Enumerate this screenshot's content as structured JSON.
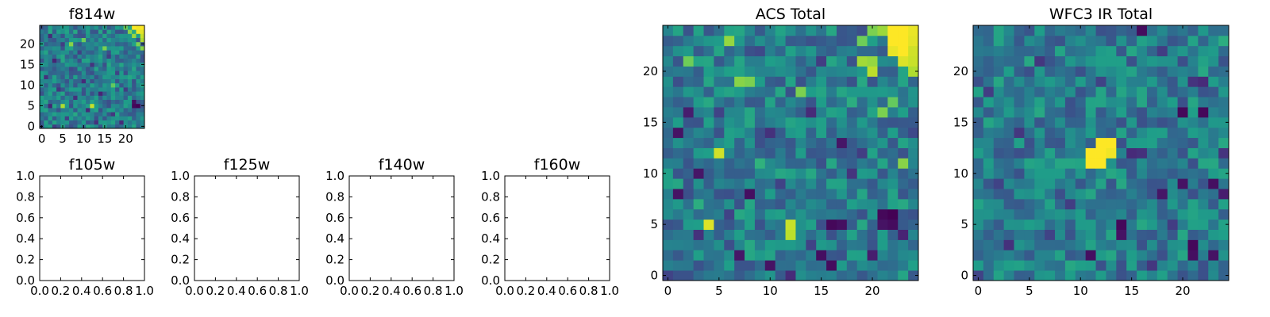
{
  "chart_data": [
    {
      "type": "heatmap",
      "title": "f814w",
      "grid_size": 25,
      "xlim": [
        -0.5,
        24.5
      ],
      "ylim": [
        -0.5,
        24.5
      ],
      "xticks": [
        0,
        5,
        10,
        15,
        20
      ],
      "yticks": [
        0,
        5,
        10,
        15,
        20
      ],
      "xtick_labels": [
        "0",
        "5",
        "10",
        "15",
        "20"
      ],
      "ytick_labels": [
        "0",
        "5",
        "10",
        "15",
        "20"
      ],
      "colormap": "viridis",
      "value_range": [
        0,
        1
      ],
      "background": "#3bb58a",
      "cells": [
        {
          "x": 22,
          "y": 24,
          "v": 1.0
        },
        {
          "x": 23,
          "y": 24,
          "v": 0.98
        },
        {
          "x": 24,
          "y": 24,
          "v": 1.0
        },
        {
          "x": 23,
          "y": 23,
          "v": 0.97
        },
        {
          "x": 24,
          "y": 23,
          "v": 0.96
        },
        {
          "x": 24,
          "y": 22,
          "v": 0.92
        },
        {
          "x": 21,
          "y": 23,
          "v": 0.82
        },
        {
          "x": 20,
          "y": 24,
          "v": 0.78
        },
        {
          "x": 22,
          "y": 22,
          "v": 0.85
        },
        {
          "x": 24,
          "y": 21,
          "v": 0.88
        },
        {
          "x": 23,
          "y": 20,
          "v": 0.8
        },
        {
          "x": 24,
          "y": 19,
          "v": 0.82
        },
        {
          "x": 2,
          "y": 22,
          "v": 0.12
        },
        {
          "x": 5,
          "y": 20,
          "v": 0.18
        },
        {
          "x": 9,
          "y": 18,
          "v": 0.2
        },
        {
          "x": 3,
          "y": 16,
          "v": 0.1
        },
        {
          "x": 12,
          "y": 15,
          "v": 0.15
        },
        {
          "x": 7,
          "y": 14,
          "v": 0.22
        },
        {
          "x": 16,
          "y": 17,
          "v": 0.18
        },
        {
          "x": 1,
          "y": 12,
          "v": 0.14
        },
        {
          "x": 10,
          "y": 11,
          "v": 0.12
        },
        {
          "x": 18,
          "y": 13,
          "v": 0.2
        },
        {
          "x": 4,
          "y": 9,
          "v": 0.16
        },
        {
          "x": 14,
          "y": 8,
          "v": 0.1
        },
        {
          "x": 8,
          "y": 7,
          "v": 0.14
        },
        {
          "x": 20,
          "y": 9,
          "v": 0.18
        },
        {
          "x": 2,
          "y": 5,
          "v": 0.1
        },
        {
          "x": 11,
          "y": 4,
          "v": 0.12
        },
        {
          "x": 17,
          "y": 3,
          "v": 0.16
        },
        {
          "x": 6,
          "y": 2,
          "v": 0.2
        },
        {
          "x": 13,
          "y": 1,
          "v": 0.14
        },
        {
          "x": 22,
          "y": 5,
          "v": 0.02
        },
        {
          "x": 23,
          "y": 5,
          "v": 0.0
        },
        {
          "x": 22,
          "y": 6,
          "v": 0.04
        },
        {
          "x": 3,
          "y": 0,
          "v": 0.18
        },
        {
          "x": 19,
          "y": 1,
          "v": 0.12
        },
        {
          "x": 12,
          "y": 5,
          "v": 0.92
        },
        {
          "x": 5,
          "y": 5,
          "v": 0.88
        },
        {
          "x": 7,
          "y": 20,
          "v": 0.82
        },
        {
          "x": 15,
          "y": 19,
          "v": 0.8
        },
        {
          "x": 10,
          "y": 21,
          "v": 0.78
        },
        {
          "x": 17,
          "y": 10,
          "v": 0.76
        }
      ]
    },
    {
      "type": "empty",
      "title": "f105w",
      "xlim": [
        0,
        1
      ],
      "ylim": [
        0,
        1
      ],
      "xtick_labels": [
        "0.0",
        "0.2",
        "0.4",
        "0.6",
        "0.8",
        "1.0"
      ],
      "ytick_labels": [
        "0.0",
        "0.2",
        "0.4",
        "0.6",
        "0.8",
        "1.0"
      ]
    },
    {
      "type": "empty",
      "title": "f125w",
      "xlim": [
        0,
        1
      ],
      "ylim": [
        0,
        1
      ],
      "xtick_labels": [
        "0.0",
        "0.2",
        "0.4",
        "0.6",
        "0.8",
        "1.0"
      ],
      "ytick_labels": [
        "0.0",
        "0.2",
        "0.4",
        "0.6",
        "0.8",
        "1.0"
      ]
    },
    {
      "type": "empty",
      "title": "f140w",
      "xlim": [
        0,
        1
      ],
      "ylim": [
        0,
        1
      ],
      "xtick_labels": [
        "0.0",
        "0.2",
        "0.4",
        "0.6",
        "0.8",
        "1.0"
      ],
      "ytick_labels": [
        "0.0",
        "0.2",
        "0.4",
        "0.6",
        "0.8",
        "1.0"
      ]
    },
    {
      "type": "empty",
      "title": "f160w",
      "xlim": [
        0,
        1
      ],
      "ylim": [
        0,
        1
      ],
      "xtick_labels": [
        "0.0",
        "0.2",
        "0.4",
        "0.6",
        "0.8",
        "1.0"
      ],
      "ytick_labels": [
        "0.0",
        "0.2",
        "0.4",
        "0.6",
        "0.8",
        "1.0"
      ]
    },
    {
      "type": "heatmap",
      "title": "ACS Total",
      "grid_size": 25,
      "xlim": [
        -0.5,
        24.5
      ],
      "ylim": [
        -0.5,
        24.5
      ],
      "xticks": [
        0,
        5,
        10,
        15,
        20
      ],
      "yticks": [
        0,
        5,
        10,
        15,
        20
      ],
      "xtick_labels": [
        "0",
        "5",
        "10",
        "15",
        "20"
      ],
      "ytick_labels": [
        "0",
        "5",
        "10",
        "15",
        "20"
      ],
      "colormap": "viridis",
      "value_range": [
        0,
        1
      ],
      "background": "#55c568",
      "cells": [
        {
          "x": 22,
          "y": 24,
          "v": 1.0
        },
        {
          "x": 23,
          "y": 24,
          "v": 1.0
        },
        {
          "x": 24,
          "y": 24,
          "v": 0.97
        },
        {
          "x": 22,
          "y": 23,
          "v": 1.0
        },
        {
          "x": 23,
          "y": 23,
          "v": 1.0
        },
        {
          "x": 24,
          "y": 23,
          "v": 0.96
        },
        {
          "x": 22,
          "y": 22,
          "v": 0.97
        },
        {
          "x": 23,
          "y": 22,
          "v": 1.0
        },
        {
          "x": 24,
          "y": 22,
          "v": 0.93
        },
        {
          "x": 23,
          "y": 21,
          "v": 0.95
        },
        {
          "x": 24,
          "y": 21,
          "v": 0.92
        },
        {
          "x": 24,
          "y": 20,
          "v": 0.88
        },
        {
          "x": 20,
          "y": 20,
          "v": 0.9
        },
        {
          "x": 19,
          "y": 21,
          "v": 0.86
        },
        {
          "x": 20,
          "y": 21,
          "v": 0.84
        },
        {
          "x": 21,
          "y": 24,
          "v": 0.85
        },
        {
          "x": 20,
          "y": 24,
          "v": 0.8
        },
        {
          "x": 19,
          "y": 23,
          "v": 0.78
        },
        {
          "x": 7,
          "y": 19,
          "v": 0.82
        },
        {
          "x": 8,
          "y": 19,
          "v": 0.8
        },
        {
          "x": 6,
          "y": 23,
          "v": 0.84
        },
        {
          "x": 2,
          "y": 21,
          "v": 0.78
        },
        {
          "x": 13,
          "y": 18,
          "v": 0.8
        },
        {
          "x": 23,
          "y": 11,
          "v": 0.82
        },
        {
          "x": 5,
          "y": 12,
          "v": 0.93
        },
        {
          "x": 4,
          "y": 5,
          "v": 0.95
        },
        {
          "x": 12,
          "y": 5,
          "v": 0.92
        },
        {
          "x": 12,
          "y": 4,
          "v": 0.9
        },
        {
          "x": 22,
          "y": 17,
          "v": 0.76
        },
        {
          "x": 21,
          "y": 16,
          "v": 0.8
        },
        {
          "x": 2,
          "y": 16,
          "v": 0.08
        },
        {
          "x": 1,
          "y": 14,
          "v": 0.05
        },
        {
          "x": 3,
          "y": 10,
          "v": 0.06
        },
        {
          "x": 1,
          "y": 8,
          "v": 0.05
        },
        {
          "x": 8,
          "y": 8,
          "v": 0.04
        },
        {
          "x": 7,
          "y": 2,
          "v": 0.06
        },
        {
          "x": 10,
          "y": 1,
          "v": 0.05
        },
        {
          "x": 15,
          "y": 2,
          "v": 0.04
        },
        {
          "x": 16,
          "y": 1,
          "v": 0.03
        },
        {
          "x": 16,
          "y": 5,
          "v": 0.02
        },
        {
          "x": 17,
          "y": 5,
          "v": 0.04
        },
        {
          "x": 21,
          "y": 6,
          "v": 0.02
        },
        {
          "x": 22,
          "y": 6,
          "v": 0.0
        },
        {
          "x": 22,
          "y": 5,
          "v": 0.03
        },
        {
          "x": 21,
          "y": 5,
          "v": 0.05
        },
        {
          "x": 17,
          "y": 13,
          "v": 0.06
        },
        {
          "x": 20,
          "y": 2,
          "v": 0.08
        },
        {
          "x": 23,
          "y": 4,
          "v": 0.1
        },
        {
          "x": 14,
          "y": 16,
          "v": 0.12
        },
        {
          "x": 10,
          "y": 14,
          "v": 0.14
        },
        {
          "x": 18,
          "y": 10,
          "v": 0.15
        },
        {
          "x": 3,
          "y": 4,
          "v": 0.14
        },
        {
          "x": 12,
          "y": 0,
          "v": 0.12
        },
        {
          "x": 0,
          "y": 0,
          "v": 0.2
        },
        {
          "x": 5,
          "y": 16,
          "v": 0.2
        },
        {
          "x": 15,
          "y": 21,
          "v": 0.18
        },
        {
          "x": 9,
          "y": 22,
          "v": 0.22
        },
        {
          "x": 11,
          "y": 9,
          "v": 0.2
        },
        {
          "x": 19,
          "y": 12,
          "v": 0.18
        },
        {
          "x": 6,
          "y": 6,
          "v": 0.2
        },
        {
          "x": 24,
          "y": 14,
          "v": 0.22
        },
        {
          "x": 1,
          "y": 19,
          "v": 0.24
        },
        {
          "x": 14,
          "y": 3,
          "v": 0.2
        },
        {
          "x": 18,
          "y": 17,
          "v": 0.62
        },
        {
          "x": 9,
          "y": 11,
          "v": 0.64
        },
        {
          "x": 3,
          "y": 7,
          "v": 0.62
        }
      ]
    },
    {
      "type": "heatmap",
      "title": "WFC3 IR Total",
      "grid_size": 25,
      "xlim": [
        -0.5,
        24.5
      ],
      "ylim": [
        -0.5,
        24.5
      ],
      "xticks": [
        0,
        5,
        10,
        15,
        20
      ],
      "yticks": [
        0,
        5,
        10,
        15,
        20
      ],
      "xtick_labels": [
        "0",
        "5",
        "10",
        "15",
        "20"
      ],
      "ytick_labels": [
        "0",
        "5",
        "10",
        "15",
        "20"
      ],
      "colormap": "viridis",
      "value_range": [
        0,
        1
      ],
      "background": "#2a9d8a",
      "cells": [
        {
          "x": 12,
          "y": 13,
          "v": 1.0
        },
        {
          "x": 13,
          "y": 13,
          "v": 1.0
        },
        {
          "x": 11,
          "y": 12,
          "v": 1.0
        },
        {
          "x": 12,
          "y": 12,
          "v": 1.0
        },
        {
          "x": 13,
          "y": 12,
          "v": 0.98
        },
        {
          "x": 11,
          "y": 11,
          "v": 1.0
        },
        {
          "x": 12,
          "y": 11,
          "v": 1.0
        },
        {
          "x": 16,
          "y": 13,
          "v": 0.55
        },
        {
          "x": 8,
          "y": 10,
          "v": 0.55
        },
        {
          "x": 16,
          "y": 24,
          "v": 0.03
        },
        {
          "x": 20,
          "y": 16,
          "v": 0.02
        },
        {
          "x": 22,
          "y": 16,
          "v": 0.02
        },
        {
          "x": 20,
          "y": 9,
          "v": 0.05
        },
        {
          "x": 23,
          "y": 9,
          "v": 0.04
        },
        {
          "x": 18,
          "y": 8,
          "v": 0.06
        },
        {
          "x": 14,
          "y": 5,
          "v": 0.02
        },
        {
          "x": 14,
          "y": 4,
          "v": 0.05
        },
        {
          "x": 11,
          "y": 2,
          "v": 0.04
        },
        {
          "x": 21,
          "y": 3,
          "v": 0.02
        },
        {
          "x": 21,
          "y": 2,
          "v": 0.04
        },
        {
          "x": 23,
          "y": 2,
          "v": 0.05
        },
        {
          "x": 24,
          "y": 8,
          "v": 0.08
        },
        {
          "x": 15,
          "y": 12,
          "v": 0.12
        },
        {
          "x": 16,
          "y": 12,
          "v": 0.14
        },
        {
          "x": 22,
          "y": 19,
          "v": 0.12
        },
        {
          "x": 21,
          "y": 19,
          "v": 0.15
        },
        {
          "x": 1,
          "y": 18,
          "v": 0.18
        },
        {
          "x": 6,
          "y": 21,
          "v": 0.16
        },
        {
          "x": 9,
          "y": 7,
          "v": 0.18
        },
        {
          "x": 3,
          "y": 3,
          "v": 0.14
        },
        {
          "x": 0,
          "y": 0,
          "v": 0.2
        },
        {
          "x": 17,
          "y": 1,
          "v": 0.16
        },
        {
          "x": 2,
          "y": 9,
          "v": 0.2
        },
        {
          "x": 18,
          "y": 22,
          "v": 0.18
        },
        {
          "x": 4,
          "y": 14,
          "v": 0.16
        },
        {
          "x": 24,
          "y": 12,
          "v": 0.15
        },
        {
          "x": 12,
          "y": 19,
          "v": 0.2
        },
        {
          "x": 7,
          "y": 4,
          "v": 0.2
        },
        {
          "x": 19,
          "y": 5,
          "v": 0.18
        },
        {
          "x": 24,
          "y": 23,
          "v": 0.62
        },
        {
          "x": 2,
          "y": 23,
          "v": 0.58
        },
        {
          "x": 22,
          "y": 20,
          "v": 0.6
        },
        {
          "x": 14,
          "y": 21,
          "v": 0.56
        },
        {
          "x": 5,
          "y": 11,
          "v": 0.58
        },
        {
          "x": 18,
          "y": 14,
          "v": 0.56
        },
        {
          "x": 10,
          "y": 6,
          "v": 0.55
        },
        {
          "x": 21,
          "y": 6,
          "v": 0.58
        },
        {
          "x": 3,
          "y": 1,
          "v": 0.56
        }
      ]
    }
  ]
}
